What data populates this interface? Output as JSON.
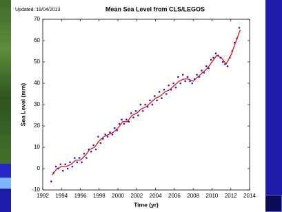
{
  "chart_data": {
    "type": "scatter",
    "title": "Mean Sea Level from CLS/LEGOS",
    "annotation": "Updated: 19/04/2013",
    "xlabel": "Time (yr)",
    "ylabel": "Sea Level (mm)",
    "xlim": [
      1992,
      2014
    ],
    "xticks": [
      1992,
      1994,
      1996,
      1998,
      2000,
      2002,
      2004,
      2006,
      2008,
      2010,
      2012,
      2014
    ],
    "ylim": [
      -10,
      70
    ],
    "yticks": [
      -10,
      0,
      10,
      20,
      30,
      40,
      50,
      60,
      70
    ],
    "series": [
      {
        "mode": "markers",
        "color": "#1a1ad6",
        "x": [
          1992.9,
          1993.15,
          1993.4,
          1993.65,
          1993.9,
          1994.15,
          1994.4,
          1994.65,
          1994.9,
          1995.15,
          1995.4,
          1995.65,
          1995.9,
          1996.15,
          1996.4,
          1996.65,
          1996.9,
          1997.15,
          1997.4,
          1997.65,
          1997.9,
          1998.15,
          1998.4,
          1998.65,
          1998.9,
          1999.15,
          1999.4,
          1999.65,
          1999.9,
          2000.15,
          2000.4,
          2000.65,
          2000.9,
          2001.15,
          2001.4,
          2001.65,
          2001.9,
          2002.15,
          2002.4,
          2002.65,
          2002.9,
          2003.15,
          2003.4,
          2003.65,
          2003.9,
          2004.15,
          2004.4,
          2004.65,
          2004.9,
          2005.15,
          2005.4,
          2005.65,
          2005.9,
          2006.15,
          2006.4,
          2006.65,
          2006.9,
          2007.15,
          2007.4,
          2007.65,
          2007.9,
          2008.15,
          2008.4,
          2008.65,
          2008.9,
          2009.15,
          2009.4,
          2009.65,
          2009.9,
          2010.15,
          2010.4,
          2010.65,
          2010.9,
          2011.15,
          2011.4,
          2011.65,
          2011.9,
          2012.15,
          2012.4,
          2012.65,
          2012.9
        ],
        "values": [
          -6,
          -2,
          1,
          0,
          2,
          -1,
          2,
          0,
          3,
          1,
          5,
          3,
          5,
          3,
          7,
          5,
          9,
          8,
          11,
          9,
          15,
          12,
          14,
          16,
          15,
          17,
          16,
          19,
          18,
          21,
          23,
          21,
          23,
          22,
          26,
          24,
          27,
          25,
          30,
          27,
          30,
          29,
          32,
          30,
          34,
          32,
          36,
          33,
          37,
          35,
          39,
          37,
          40,
          38,
          43,
          40,
          44,
          41,
          43,
          41,
          40,
          42,
          44,
          43,
          46,
          45,
          48,
          47,
          51,
          52,
          54,
          53,
          52,
          50,
          49,
          48,
          52,
          55,
          59,
          61,
          66
        ]
      },
      {
        "mode": "line",
        "color": "#e01010",
        "x": [
          1993,
          1993.5,
          1994,
          1994.5,
          1995,
          1995.5,
          1996,
          1996.5,
          1997,
          1997.5,
          1998,
          1998.5,
          1999,
          1999.5,
          2000,
          2000.5,
          2001,
          2001.5,
          2002,
          2002.5,
          2003,
          2003.5,
          2004,
          2004.5,
          2005,
          2005.5,
          2006,
          2006.5,
          2007,
          2007.5,
          2008,
          2008.5,
          2009,
          2009.5,
          2010,
          2010.5,
          2011,
          2011.5,
          2012,
          2012.5,
          2013
        ],
        "values": [
          -3,
          0,
          1,
          1,
          2,
          4,
          4,
          6,
          9,
          10,
          13,
          15,
          16,
          17,
          19,
          22,
          22,
          25,
          26,
          28,
          29,
          31,
          33,
          34,
          36,
          37,
          39,
          41,
          42,
          42,
          41,
          43,
          45,
          47,
          50,
          53,
          52,
          49,
          53,
          59,
          65
        ]
      }
    ]
  }
}
